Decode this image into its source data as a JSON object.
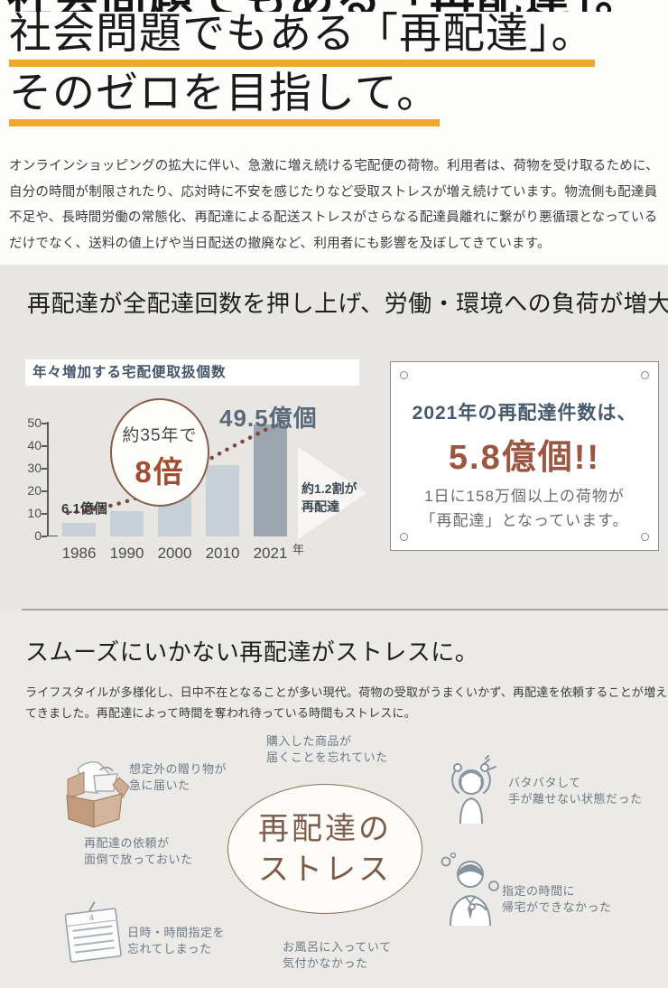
{
  "colors": {
    "accent_underline": "#f1a72e",
    "section_bg": "#e7e6e3",
    "bottom_bg": "#ebeae7",
    "bar": "#c7d0d7",
    "bar_highlight": "#9aa5af",
    "brown": "#9c5742",
    "dark_blue_gray": "#46586b",
    "trend_dots": "#7e4a3c"
  },
  "header": {
    "clipped_prev_line": "社会問題でもある「再配達」。",
    "title_line1": "社会問題でもある「再配達」。",
    "title_line2": "そのゼロを目指して。"
  },
  "intro": {
    "text": "オンラインショッピングの拡大に伴い、急激に増え続ける宅配便の荷物。利用者は、荷物を受け取るために、自分の時間が制限されたり、応対時に不安を感じたりなど受取ストレスが増え続けています。物流側も配達員不足や、長時間労働の常態化、再配達による配送ストレスがさらなる配達員離れに繋がり悪循環となっているだけでなく、送料の値上げや当日配送の撤廃など、利用者にも影響を及ぼしてきています。"
  },
  "impact": {
    "heading": "再配達が全配達回数を押し上げ、労働・環境への負荷が増大",
    "chart": {
      "title": "年々増加する宅配便取扱個数",
      "badge_line1": "約35年で",
      "badge_line2": "8倍",
      "peak_label": "49.5億個",
      "start_label": "6.1億個",
      "arrow_label_line1": "約1.2割が",
      "arrow_label_line2": "再配達",
      "x_axis_suffix": "年"
    },
    "callout": {
      "line1": "2021年の再配達件数は、",
      "big_number": "5.8億個!!",
      "desc_line1": "1日に158万個以上の荷物が",
      "desc_line2": "「再配達」となっています。"
    }
  },
  "stress": {
    "heading": "スムーズにいかない再配達がストレスに。",
    "description": "ライフスタイルが多様化し、日中不在となることが多い現代。荷物の受取がうまくいかず、再配達を依頼することが増えてきました。再配達によって時間を奪われ待っている時間もストレスに。",
    "center_line1": "再配達の",
    "center_line2": "ストレス",
    "calendar_day": "4",
    "items": [
      {
        "line1": "想定外の贈り物が",
        "line2": "急に届いた"
      },
      {
        "line1": "購入した商品が",
        "line2": "届くことを忘れていた"
      },
      {
        "line1": "バタバタして",
        "line2": "手が離せない状態だった"
      },
      {
        "line1": "再配達の依頼が",
        "line2": "面倒で放っておいた"
      },
      {
        "line1": "指定の時間に",
        "line2": "帰宅ができなかった"
      },
      {
        "line1": "日時・時間指定を",
        "line2": "忘れてしまった"
      },
      {
        "line1": "お風呂に入っていて",
        "line2": "気付かなかった"
      }
    ]
  },
  "chart_data": {
    "type": "bar",
    "title": "年々増加する宅配便取扱個数",
    "categories": [
      "1986",
      "1990",
      "2000",
      "2010",
      "2021"
    ],
    "values": [
      6.1,
      11,
      22,
      31.5,
      49.5
    ],
    "unit": "億個",
    "xlabel": "年",
    "ylabel": "",
    "ylim": [
      0,
      50
    ],
    "yticks": [
      0,
      10,
      20,
      30,
      40,
      50
    ],
    "highlight_index": 4,
    "grid": false,
    "annotations": [
      "約35年で8倍",
      "49.5億個",
      "6.1億個",
      "約1.2割が再配達"
    ],
    "trend_line": "dotted exponential curve rising left to right"
  }
}
